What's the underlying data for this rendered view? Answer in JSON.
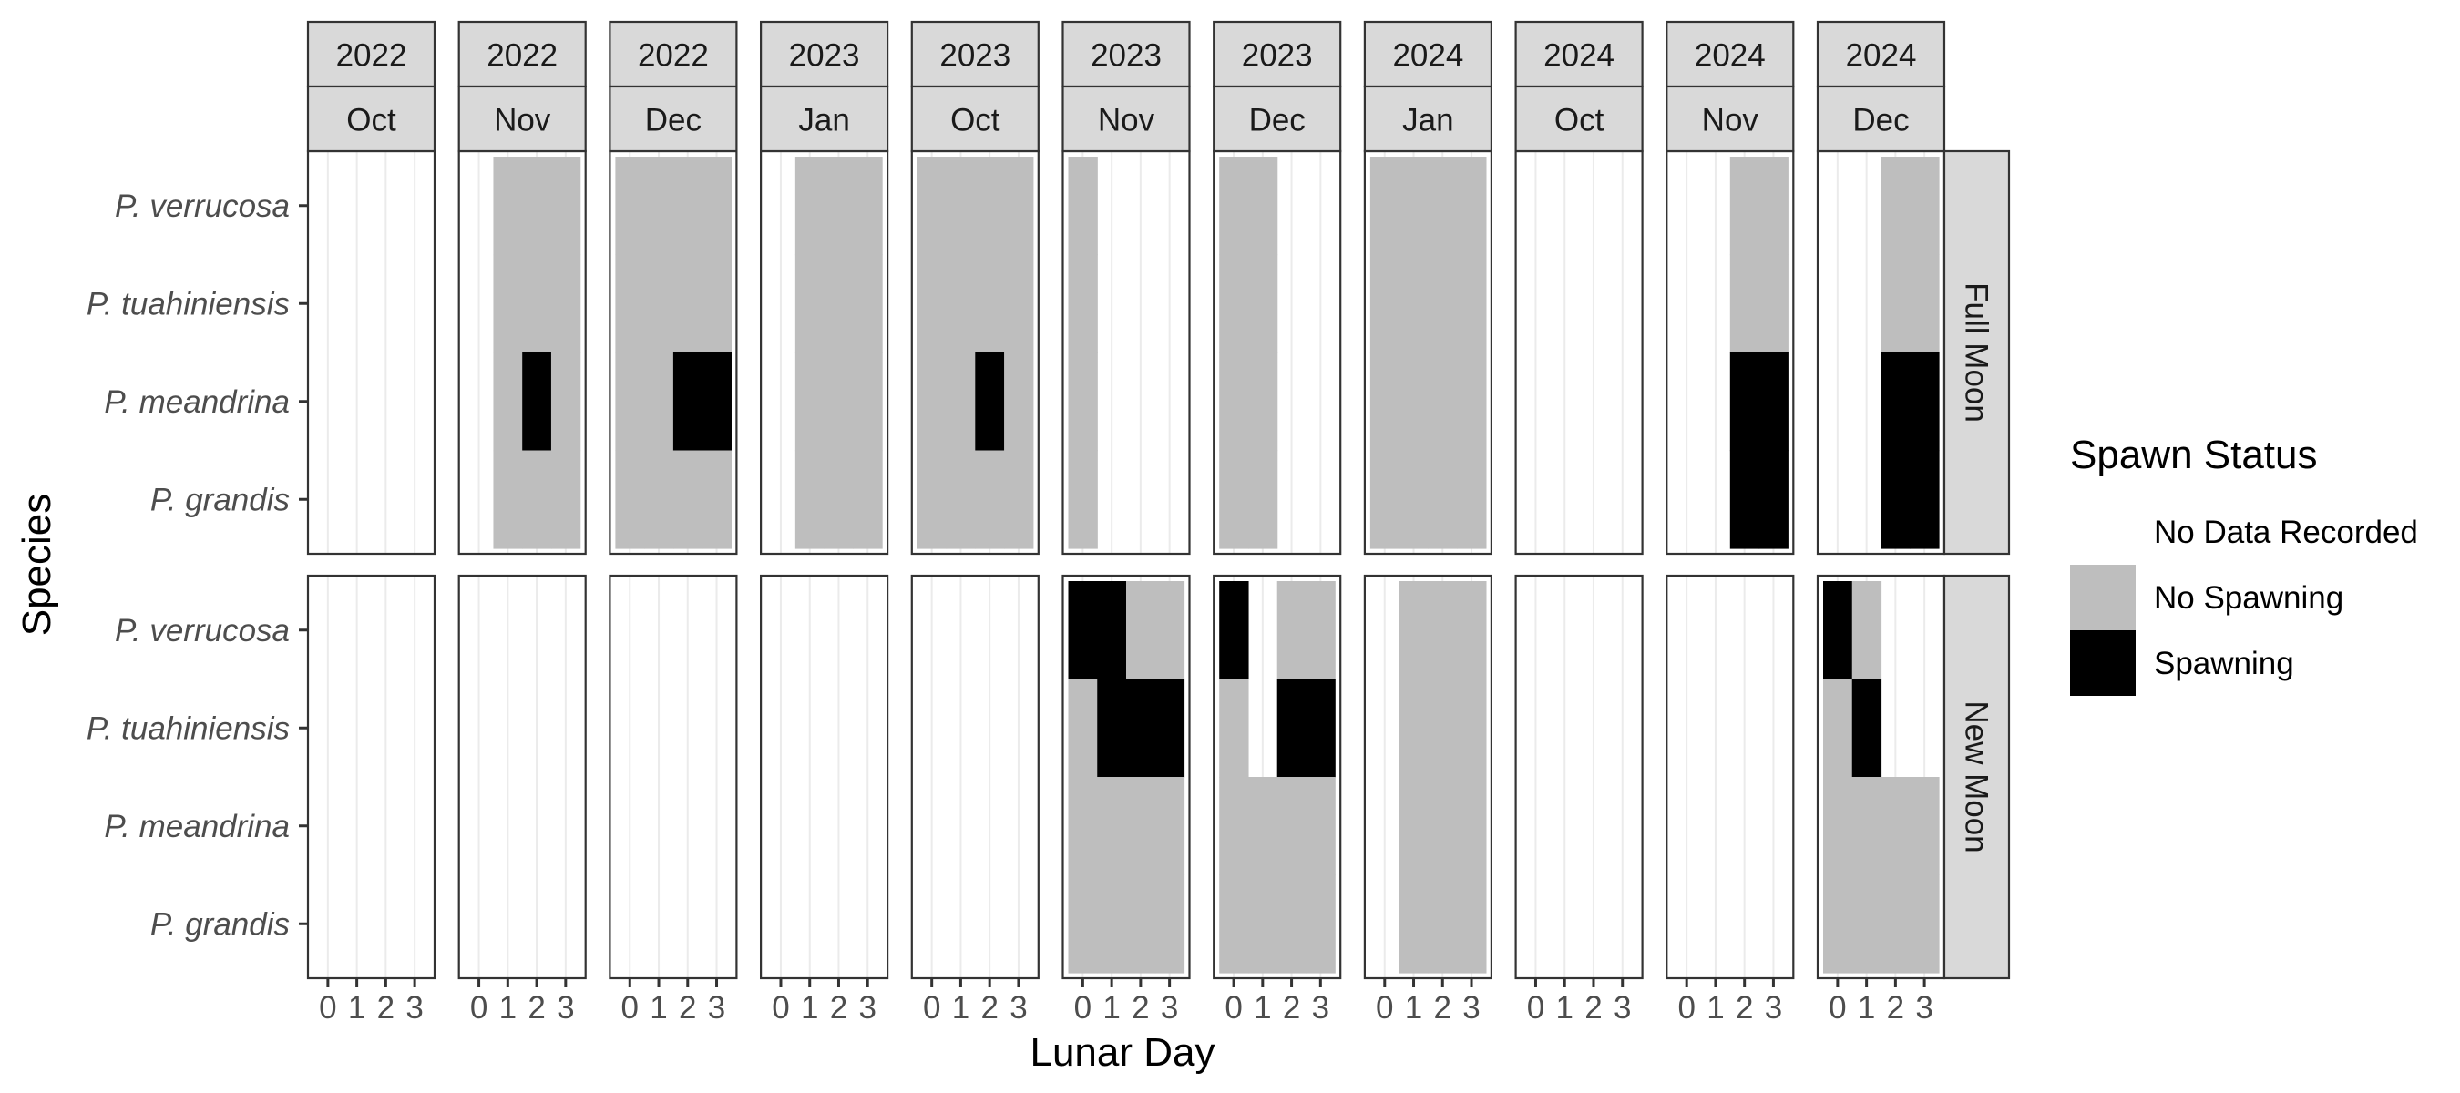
{
  "chart_data": {
    "type": "heatmap",
    "xlabel": "Lunar Day",
    "ylabel": "Species",
    "x_ticks": [
      "0",
      "1",
      "2",
      "3"
    ],
    "species": [
      "P. verrucosa",
      "P. tuahiniensis",
      "P. meandrina",
      "P. grandis"
    ],
    "phases": [
      "Full Moon",
      "New Moon"
    ],
    "panels": [
      {
        "year": "2022",
        "month": "Oct"
      },
      {
        "year": "2022",
        "month": "Nov"
      },
      {
        "year": "2022",
        "month": "Dec"
      },
      {
        "year": "2023",
        "month": "Jan"
      },
      {
        "year": "2023",
        "month": "Oct"
      },
      {
        "year": "2023",
        "month": "Nov"
      },
      {
        "year": "2023",
        "month": "Dec"
      },
      {
        "year": "2024",
        "month": "Jan"
      },
      {
        "year": "2024",
        "month": "Oct"
      },
      {
        "year": "2024",
        "month": "Nov"
      },
      {
        "year": "2024",
        "month": "Dec"
      }
    ],
    "legend": {
      "title": "Spawn Status",
      "items": [
        {
          "label": "No Data Recorded",
          "color": "#ffffff"
        },
        {
          "label": "No Spawning",
          "color": "#bebebe"
        },
        {
          "label": "Spawning",
          "color": "#000000"
        }
      ]
    },
    "status_note": "grid[phase][panel][species][lunar day]: 0 = No Data Recorded, 1 = No Spawning, 2 = Spawning; species order = verrucosa, tuahiniensis, meandrina, grandis; lunar day order = 0,1,2,3",
    "grid": [
      [
        [
          [
            0,
            0,
            0,
            0
          ],
          [
            0,
            0,
            0,
            0
          ],
          [
            0,
            0,
            0,
            0
          ],
          [
            0,
            0,
            0,
            0
          ]
        ],
        [
          [
            0,
            1,
            1,
            1
          ],
          [
            0,
            1,
            1,
            1
          ],
          [
            0,
            1,
            2,
            1
          ],
          [
            0,
            1,
            1,
            1
          ]
        ],
        [
          [
            1,
            1,
            1,
            1
          ],
          [
            1,
            1,
            1,
            1
          ],
          [
            1,
            1,
            2,
            2
          ],
          [
            1,
            1,
            1,
            1
          ]
        ],
        [
          [
            0,
            1,
            1,
            1
          ],
          [
            0,
            1,
            1,
            1
          ],
          [
            0,
            1,
            1,
            1
          ],
          [
            0,
            1,
            1,
            1
          ]
        ],
        [
          [
            1,
            1,
            1,
            1
          ],
          [
            1,
            1,
            1,
            1
          ],
          [
            1,
            1,
            2,
            1
          ],
          [
            1,
            1,
            1,
            1
          ]
        ],
        [
          [
            1,
            0,
            0,
            0
          ],
          [
            1,
            0,
            0,
            0
          ],
          [
            1,
            0,
            0,
            0
          ],
          [
            1,
            0,
            0,
            0
          ]
        ],
        [
          [
            1,
            1,
            0,
            0
          ],
          [
            1,
            1,
            0,
            0
          ],
          [
            1,
            1,
            0,
            0
          ],
          [
            1,
            1,
            0,
            0
          ]
        ],
        [
          [
            1,
            1,
            1,
            1
          ],
          [
            1,
            1,
            1,
            1
          ],
          [
            1,
            1,
            1,
            1
          ],
          [
            1,
            1,
            1,
            1
          ]
        ],
        [
          [
            0,
            0,
            0,
            0
          ],
          [
            0,
            0,
            0,
            0
          ],
          [
            0,
            0,
            0,
            0
          ],
          [
            0,
            0,
            0,
            0
          ]
        ],
        [
          [
            0,
            0,
            1,
            1
          ],
          [
            0,
            0,
            1,
            1
          ],
          [
            0,
            0,
            2,
            2
          ],
          [
            0,
            0,
            2,
            2
          ]
        ],
        [
          [
            0,
            0,
            1,
            1
          ],
          [
            0,
            0,
            1,
            1
          ],
          [
            0,
            0,
            2,
            2
          ],
          [
            0,
            0,
            2,
            2
          ]
        ]
      ],
      [
        [
          [
            0,
            0,
            0,
            0
          ],
          [
            0,
            0,
            0,
            0
          ],
          [
            0,
            0,
            0,
            0
          ],
          [
            0,
            0,
            0,
            0
          ]
        ],
        [
          [
            0,
            0,
            0,
            0
          ],
          [
            0,
            0,
            0,
            0
          ],
          [
            0,
            0,
            0,
            0
          ],
          [
            0,
            0,
            0,
            0
          ]
        ],
        [
          [
            0,
            0,
            0,
            0
          ],
          [
            0,
            0,
            0,
            0
          ],
          [
            0,
            0,
            0,
            0
          ],
          [
            0,
            0,
            0,
            0
          ]
        ],
        [
          [
            0,
            0,
            0,
            0
          ],
          [
            0,
            0,
            0,
            0
          ],
          [
            0,
            0,
            0,
            0
          ],
          [
            0,
            0,
            0,
            0
          ]
        ],
        [
          [
            0,
            0,
            0,
            0
          ],
          [
            0,
            0,
            0,
            0
          ],
          [
            0,
            0,
            0,
            0
          ],
          [
            0,
            0,
            0,
            0
          ]
        ],
        [
          [
            2,
            2,
            1,
            1
          ],
          [
            1,
            2,
            2,
            2
          ],
          [
            1,
            1,
            1,
            1
          ],
          [
            1,
            1,
            1,
            1
          ]
        ],
        [
          [
            2,
            0,
            1,
            1
          ],
          [
            1,
            0,
            2,
            2
          ],
          [
            1,
            1,
            1,
            1
          ],
          [
            1,
            1,
            1,
            1
          ]
        ],
        [
          [
            0,
            1,
            1,
            1
          ],
          [
            0,
            1,
            1,
            1
          ],
          [
            0,
            1,
            1,
            1
          ],
          [
            0,
            1,
            1,
            1
          ]
        ],
        [
          [
            0,
            0,
            0,
            0
          ],
          [
            0,
            0,
            0,
            0
          ],
          [
            0,
            0,
            0,
            0
          ],
          [
            0,
            0,
            0,
            0
          ]
        ],
        [
          [
            0,
            0,
            0,
            0
          ],
          [
            0,
            0,
            0,
            0
          ],
          [
            0,
            0,
            0,
            0
          ],
          [
            0,
            0,
            0,
            0
          ]
        ],
        [
          [
            2,
            1,
            0,
            0
          ],
          [
            1,
            2,
            0,
            0
          ],
          [
            1,
            1,
            1,
            1
          ],
          [
            1,
            1,
            1,
            1
          ]
        ]
      ]
    ]
  }
}
